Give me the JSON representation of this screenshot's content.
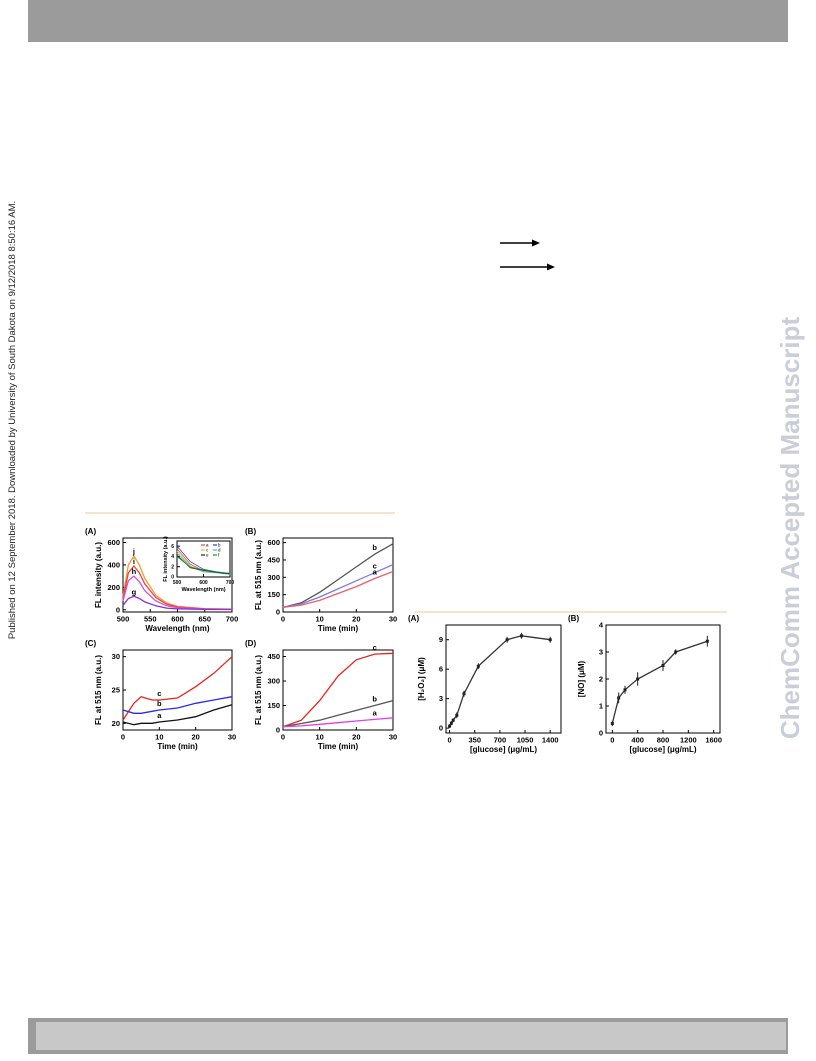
{
  "page": {
    "side_note": "Published on 12 September 2018. Downloaded by University of South Dakota on 9/12/2018 8:50:16 AM.",
    "watermark": "ChemComm Accepted Manuscript"
  },
  "chart_data": [
    {
      "type": "line",
      "label": "(A)",
      "xlabel": "Wavelength (nm)",
      "ylabel": "FL intensity (a.u.)",
      "xlim": [
        500,
        700
      ],
      "ylim": [
        -20,
        640
      ],
      "xticks": [
        500,
        550,
        600,
        650,
        700
      ],
      "yticks": [
        0,
        200,
        400,
        600
      ],
      "series": [
        {
          "name": "j",
          "color": "#f39c33",
          "x": [
            500,
            510,
            520,
            530,
            540,
            560,
            580,
            600,
            650,
            700
          ],
          "values": [
            120,
            400,
            480,
            400,
            280,
            130,
            60,
            30,
            10,
            5
          ]
        },
        {
          "name": "i",
          "color": "#e8453c",
          "x": [
            500,
            510,
            520,
            530,
            540,
            560,
            580,
            600,
            650,
            700
          ],
          "values": [
            100,
            330,
            390,
            330,
            230,
            110,
            50,
            25,
            8,
            4
          ]
        },
        {
          "name": "h",
          "color": "#d64fd0",
          "x": [
            500,
            510,
            520,
            530,
            540,
            560,
            580,
            600,
            650,
            700
          ],
          "values": [
            80,
            260,
            300,
            250,
            170,
            80,
            35,
            18,
            6,
            3
          ]
        },
        {
          "name": "g",
          "color": "#8a2be2",
          "x": [
            500,
            510,
            520,
            530,
            540,
            560,
            580,
            600,
            650,
            700
          ],
          "values": [
            40,
            100,
            120,
            100,
            70,
            35,
            15,
            8,
            3,
            2
          ]
        }
      ]
    },
    {
      "type": "line",
      "xlabel": "Wavelength (nm)",
      "ylabel": "FL intensity (a.u.)",
      "xlim": [
        500,
        700
      ],
      "ylim": [
        0,
        7
      ],
      "xticks": [
        500,
        600,
        700
      ],
      "yticks": [
        0,
        2,
        4,
        6
      ],
      "legend": "upper right",
      "series": [
        {
          "name": "a",
          "color": "#e8453c",
          "x": [
            500,
            550,
            600,
            650,
            700
          ],
          "values": [
            5.5,
            2.5,
            1.2,
            0.9,
            0.6
          ]
        },
        {
          "name": "b",
          "color": "#2a3fd6",
          "x": [
            500,
            550,
            600,
            650,
            700
          ],
          "values": [
            6,
            3,
            1.5,
            1,
            0.7
          ]
        },
        {
          "name": "c",
          "color": "#e6c21c",
          "x": [
            500,
            550,
            600,
            650,
            700
          ],
          "values": [
            5,
            2.2,
            1.1,
            0.8,
            0.5
          ]
        },
        {
          "name": "d",
          "color": "#25c3d6",
          "x": [
            500,
            550,
            600,
            650,
            700
          ],
          "values": [
            4.6,
            2,
            1,
            0.8,
            0.5
          ]
        },
        {
          "name": "e",
          "color": "#222222",
          "x": [
            500,
            550,
            600,
            650,
            700
          ],
          "values": [
            4.2,
            1.8,
            1.3,
            0.9,
            0.6
          ]
        },
        {
          "name": "f",
          "color": "#2e8b2e",
          "x": [
            500,
            550,
            600,
            650,
            700
          ],
          "values": [
            4,
            1.9,
            1.4,
            1,
            0.7
          ]
        }
      ]
    },
    {
      "type": "line",
      "label": "(B)",
      "xlabel": "Time (min)",
      "ylabel": "FL at 515 nm (a.u.)",
      "xlim": [
        0,
        30
      ],
      "ylim": [
        0,
        640
      ],
      "xticks": [
        0,
        10,
        20,
        30
      ],
      "yticks": [
        0,
        150,
        300,
        450,
        600
      ],
      "series": [
        {
          "name": "b",
          "color": "#555555",
          "x": [
            0,
            5,
            10,
            15,
            20,
            25,
            30
          ],
          "values": [
            40,
            80,
            170,
            280,
            390,
            500,
            590
          ]
        },
        {
          "name": "c",
          "color": "#7b7be8",
          "x": [
            0,
            5,
            10,
            15,
            20,
            25,
            30
          ],
          "values": [
            40,
            70,
            130,
            200,
            270,
            340,
            410
          ]
        },
        {
          "name": "a",
          "color": "#e8606a",
          "x": [
            0,
            5,
            10,
            15,
            20,
            25,
            30
          ],
          "values": [
            40,
            60,
            100,
            160,
            220,
            290,
            350
          ]
        }
      ]
    },
    {
      "type": "line",
      "label": "(C)",
      "xlabel": "Time (min)",
      "ylabel": "FL at 515 nm (a.u.)",
      "xlim": [
        0,
        30
      ],
      "ylim": [
        19,
        31
      ],
      "xticks": [
        0,
        10,
        20,
        30
      ],
      "yticks": [
        20,
        25,
        30
      ],
      "series": [
        {
          "name": "c",
          "color": "#e8231c",
          "x": [
            0,
            3,
            5,
            8,
            10,
            15,
            20,
            25,
            30
          ],
          "values": [
            20.5,
            23,
            24,
            23.5,
            23.5,
            23.8,
            25.5,
            27.5,
            30
          ]
        },
        {
          "name": "b",
          "color": "#2a2ae8",
          "x": [
            0,
            3,
            5,
            8,
            10,
            15,
            20,
            25,
            30
          ],
          "values": [
            22,
            21.5,
            21.5,
            21.8,
            22,
            22.3,
            23,
            23.5,
            24
          ]
        },
        {
          "name": "a",
          "color": "#111111",
          "x": [
            0,
            3,
            5,
            8,
            10,
            15,
            20,
            25,
            30
          ],
          "values": [
            20.2,
            19.8,
            20,
            20,
            20.2,
            20.5,
            21,
            22,
            22.8
          ]
        }
      ]
    },
    {
      "type": "line",
      "label": "(D)",
      "xlabel": "Time (min)",
      "ylabel": "FL at 515 nm (a.u.)",
      "xlim": [
        0,
        30
      ],
      "ylim": [
        0,
        490
      ],
      "xticks": [
        0,
        10,
        20,
        30
      ],
      "yticks": [
        0,
        150,
        300,
        450
      ],
      "series": [
        {
          "name": "c",
          "color": "#e8231c",
          "x": [
            0,
            5,
            10,
            15,
            20,
            25,
            30
          ],
          "values": [
            20,
            60,
            180,
            330,
            430,
            465,
            470
          ]
        },
        {
          "name": "b",
          "color": "#555555",
          "x": [
            0,
            5,
            10,
            15,
            20,
            25,
            30
          ],
          "values": [
            20,
            40,
            60,
            90,
            120,
            150,
            180
          ]
        },
        {
          "name": "a",
          "color": "#e040e0",
          "x": [
            0,
            5,
            10,
            15,
            20,
            25,
            30
          ],
          "values": [
            20,
            25,
            35,
            45,
            55,
            65,
            75
          ]
        }
      ]
    },
    {
      "type": "errorline",
      "label": "(A)",
      "xlabel": "[glucose] (μg/mL)",
      "ylabel": "[H₂O₂] (μM)",
      "xlim": [
        -50,
        1550
      ],
      "ylim": [
        -0.5,
        10.5
      ],
      "xticks": [
        0,
        350,
        700,
        1050,
        1400
      ],
      "yticks": [
        0,
        3,
        6,
        9
      ],
      "series": [
        {
          "color": "#333333",
          "x": [
            0,
            25,
            50,
            100,
            200,
            400,
            800,
            1000,
            1400
          ],
          "values": [
            0.2,
            0.5,
            0.8,
            1.3,
            3.5,
            6.3,
            9.0,
            9.4,
            9.0
          ],
          "errors": [
            0.2,
            0.2,
            0.2,
            0.3,
            0.3,
            0.3,
            0.3,
            0.3,
            0.3
          ]
        }
      ]
    },
    {
      "type": "errorline",
      "label": "(B)",
      "xlabel": "[glucose] (μg/mL)",
      "ylabel": "[NO] (μM)",
      "xlim": [
        -100,
        1700
      ],
      "ylim": [
        0,
        4
      ],
      "xticks": [
        0,
        400,
        800,
        1200,
        1600
      ],
      "yticks": [
        0,
        1,
        2,
        3,
        4
      ],
      "series": [
        {
          "color": "#333333",
          "x": [
            0,
            100,
            200,
            400,
            800,
            1000,
            1500
          ],
          "values": [
            0.35,
            1.3,
            1.6,
            2.0,
            2.5,
            3.0,
            3.4
          ],
          "errors": [
            0.1,
            0.2,
            0.15,
            0.25,
            0.2,
            0.1,
            0.2
          ]
        }
      ]
    }
  ]
}
